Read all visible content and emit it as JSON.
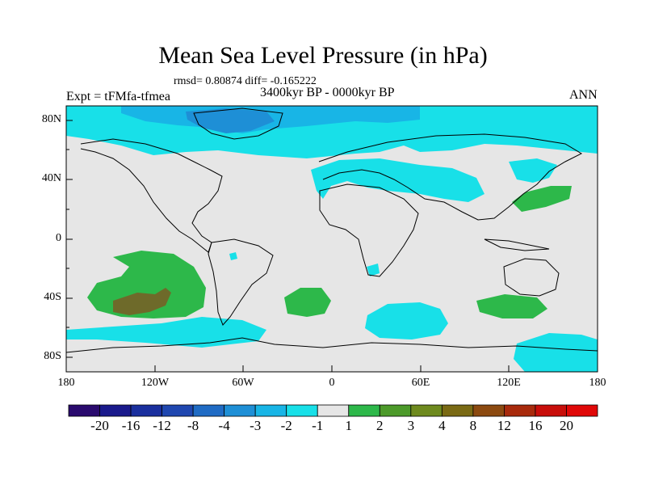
{
  "title": "Mean Sea Level Pressure (in hPa)",
  "stats": "rmsd= 0.80874 diff= -0.165222",
  "experiment": "Expt = tFMfa-tfmea",
  "period": "3400kyr BP - 0000kyr BP",
  "season": "ANN",
  "lat_labels": [
    "80N",
    "40N",
    "0",
    "40S",
    "80S"
  ],
  "lon_labels": [
    "180",
    "120W",
    "60W",
    "0",
    "60E",
    "120E",
    "180"
  ],
  "colorbar": {
    "labels": [
      "-20",
      "-16",
      "-12",
      "-8",
      "-4",
      "-3",
      "-2",
      "-1",
      "1",
      "2",
      "3",
      "4",
      "8",
      "12",
      "16",
      "20"
    ],
    "colors": [
      "#2a0a6e",
      "#1a1a8c",
      "#1a2f9e",
      "#1f47b0",
      "#1f6bc4",
      "#1e8fd6",
      "#18b5e6",
      "#18e0e8",
      "#e6e6e6",
      "#2db84a",
      "#4c9a2a",
      "#6e8a1e",
      "#7a6a14",
      "#8c4a10",
      "#a82a0c",
      "#c80e0a",
      "#e00808"
    ]
  },
  "colors": {
    "background": "#e6e6e6",
    "neg_light": "#18e0e8",
    "neg_mid": "#18b5e6",
    "neg_dark": "#1e8fd6",
    "pos_light": "#2db84a",
    "pos_mid": "#4c9a2a",
    "pos_dark": "#6e6a2a"
  }
}
